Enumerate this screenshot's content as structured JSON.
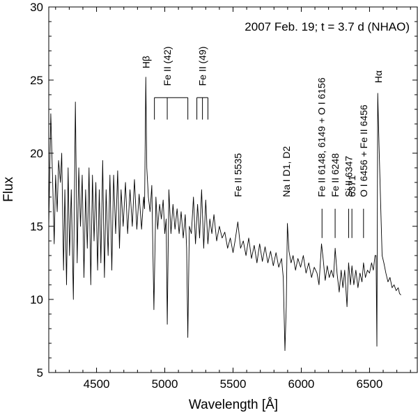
{
  "chart_data": {
    "type": "line",
    "title": "2007 Feb. 19; t = 3.7 d (NHAO)",
    "xlabel": "Wavelength [Å]",
    "ylabel": "Flux",
    "xlim": [
      4150,
      6850
    ],
    "ylim": [
      5,
      30
    ],
    "xticks": [
      4500,
      5000,
      5500,
      6000,
      6500
    ],
    "yticks": [
      5,
      10,
      15,
      20,
      25,
      30
    ],
    "grid": false,
    "legend": "none",
    "series": [
      {
        "color": "#000000",
        "points": [
          [
            4150,
            15.0
          ],
          [
            4165,
            22.7
          ],
          [
            4180,
            17.5
          ],
          [
            4190,
            13.8
          ],
          [
            4200,
            18.5
          ],
          [
            4212,
            16.0
          ],
          [
            4222,
            19.5
          ],
          [
            4235,
            18.0
          ],
          [
            4245,
            20.0
          ],
          [
            4258,
            12.0
          ],
          [
            4268,
            17.5
          ],
          [
            4280,
            11.0
          ],
          [
            4292,
            19.0
          ],
          [
            4302,
            13.0
          ],
          [
            4315,
            17.5
          ],
          [
            4330,
            10.0
          ],
          [
            4345,
            23.5
          ],
          [
            4358,
            12.5
          ],
          [
            4370,
            19.0
          ],
          [
            4382,
            15.0
          ],
          [
            4395,
            18.5
          ],
          [
            4408,
            11.5
          ],
          [
            4420,
            17.5
          ],
          [
            4432,
            13.5
          ],
          [
            4445,
            19.0
          ],
          [
            4458,
            11.0
          ],
          [
            4470,
            18.5
          ],
          [
            4482,
            14.0
          ],
          [
            4495,
            18.0
          ],
          [
            4508,
            12.0
          ],
          [
            4520,
            17.5
          ],
          [
            4532,
            12.5
          ],
          [
            4545,
            19.5
          ],
          [
            4558,
            11.5
          ],
          [
            4570,
            17.5
          ],
          [
            4585,
            13.0
          ],
          [
            4598,
            18.5
          ],
          [
            4612,
            12.0
          ],
          [
            4625,
            18.5
          ],
          [
            4640,
            14.5
          ],
          [
            4655,
            18.8
          ],
          [
            4668,
            13.5
          ],
          [
            4680,
            17.5
          ],
          [
            4695,
            15.0
          ],
          [
            4712,
            18.0
          ],
          [
            4728,
            14.5
          ],
          [
            4745,
            17.5
          ],
          [
            4762,
            15.0
          ],
          [
            4778,
            18.2
          ],
          [
            4795,
            14.8
          ],
          [
            4812,
            17.2
          ],
          [
            4830,
            14.8
          ],
          [
            4845,
            17.0
          ],
          [
            4852,
            16.2
          ],
          [
            4861,
            25.2
          ],
          [
            4868,
            19.0
          ],
          [
            4880,
            17.0
          ],
          [
            4892,
            16.0
          ],
          [
            4905,
            17.8
          ],
          [
            4920,
            9.3
          ],
          [
            4935,
            17.0
          ],
          [
            4948,
            14.8
          ],
          [
            4962,
            16.5
          ],
          [
            4975,
            15.5
          ],
          [
            4988,
            16.8
          ],
          [
            5000,
            14.5
          ],
          [
            5010,
            15.5
          ],
          [
            5018,
            8.3
          ],
          [
            5030,
            17.5
          ],
          [
            5045,
            14.5
          ],
          [
            5060,
            16.5
          ],
          [
            5075,
            14.8
          ],
          [
            5090,
            16.2
          ],
          [
            5105,
            14.5
          ],
          [
            5120,
            16.0
          ],
          [
            5135,
            14.2
          ],
          [
            5150,
            15.8
          ],
          [
            5160,
            13.5
          ],
          [
            5169,
            7.4
          ],
          [
            5180,
            15.0
          ],
          [
            5195,
            14.5
          ],
          [
            5210,
            17.0
          ],
          [
            5225,
            13.8
          ],
          [
            5240,
            16.5
          ],
          [
            5255,
            14.2
          ],
          [
            5270,
            17.5
          ],
          [
            5285,
            13.5
          ],
          [
            5300,
            16.8
          ],
          [
            5316,
            13.8
          ],
          [
            5330,
            15.5
          ],
          [
            5345,
            14.5
          ],
          [
            5360,
            15.8
          ],
          [
            5380,
            14.0
          ],
          [
            5400,
            15.0
          ],
          [
            5420,
            14.2
          ],
          [
            5440,
            14.6
          ],
          [
            5460,
            13.5
          ],
          [
            5480,
            14.2
          ],
          [
            5500,
            13.2
          ],
          [
            5515,
            14.0
          ],
          [
            5535,
            15.3
          ],
          [
            5555,
            13.5
          ],
          [
            5575,
            14.0
          ],
          [
            5595,
            13.0
          ],
          [
            5615,
            14.2
          ],
          [
            5635,
            12.8
          ],
          [
            5655,
            13.7
          ],
          [
            5675,
            12.5
          ],
          [
            5695,
            13.8
          ],
          [
            5715,
            12.6
          ],
          [
            5735,
            13.6
          ],
          [
            5755,
            12.5
          ],
          [
            5775,
            13.3
          ],
          [
            5795,
            12.3
          ],
          [
            5815,
            13.2
          ],
          [
            5835,
            12.2
          ],
          [
            5855,
            12.8
          ],
          [
            5868,
            11.5
          ],
          [
            5880,
            6.5
          ],
          [
            5890,
            9.5
          ],
          [
            5898,
            15.2
          ],
          [
            5910,
            13.3
          ],
          [
            5925,
            12.5
          ],
          [
            5940,
            13.0
          ],
          [
            5958,
            12.0
          ],
          [
            5975,
            12.8
          ],
          [
            5995,
            12.2
          ],
          [
            6015,
            13.0
          ],
          [
            6035,
            11.8
          ],
          [
            6055,
            12.5
          ],
          [
            6075,
            11.5
          ],
          [
            6095,
            12.2
          ],
          [
            6115,
            11.8
          ],
          [
            6130,
            11.0
          ],
          [
            6148,
            13.8
          ],
          [
            6160,
            12.8
          ],
          [
            6175,
            11.3
          ],
          [
            6190,
            12.3
          ],
          [
            6205,
            11.5
          ],
          [
            6220,
            12.0
          ],
          [
            6236,
            11.5
          ],
          [
            6248,
            13.5
          ],
          [
            6262,
            11.8
          ],
          [
            6278,
            10.5
          ],
          [
            6292,
            12.0
          ],
          [
            6305,
            10.8
          ],
          [
            6318,
            12.0
          ],
          [
            6335,
            9.5
          ],
          [
            6347,
            12.5
          ],
          [
            6360,
            11.0
          ],
          [
            6371,
            12.3
          ],
          [
            6385,
            11.0
          ],
          [
            6400,
            12.0
          ],
          [
            6415,
            10.8
          ],
          [
            6430,
            11.8
          ],
          [
            6445,
            11.2
          ],
          [
            6456,
            12.5
          ],
          [
            6470,
            11.5
          ],
          [
            6485,
            12.0
          ],
          [
            6500,
            11.8
          ],
          [
            6515,
            12.5
          ],
          [
            6528,
            12.0
          ],
          [
            6540,
            13.0
          ],
          [
            6548,
            13.0
          ],
          [
            6554,
            6.8
          ],
          [
            6560,
            24.1
          ],
          [
            6570,
            20.5
          ],
          [
            6580,
            17.0
          ],
          [
            6592,
            13.0
          ],
          [
            6605,
            12.5
          ],
          [
            6620,
            11.8
          ],
          [
            6635,
            11.2
          ],
          [
            6650,
            11.5
          ],
          [
            6665,
            10.8
          ],
          [
            6680,
            11.0
          ],
          [
            6695,
            10.6
          ],
          [
            6710,
            10.8
          ],
          [
            6720,
            10.4
          ],
          [
            6730,
            10.3
          ]
        ]
      }
    ],
    "markers": [
      {
        "label": "Hβ",
        "label_x": 4861,
        "label_y": 25.8
      },
      {
        "label": "Fe II (42)",
        "label_x": 5018,
        "label_y": 24.6,
        "comb_top": 23.8,
        "comb_bottom": 22.3,
        "comb_x": [
          4924,
          5018,
          5169
        ]
      },
      {
        "label": "Fe II (49)",
        "label_x": 5276,
        "label_y": 24.6,
        "comb_top": 23.8,
        "comb_bottom": 22.3,
        "comb_x": [
          5235,
          5276,
          5316
        ]
      },
      {
        "label": "Fe II 5535",
        "label_x": 5535,
        "label_y": 17.0
      },
      {
        "label": "Na I D1, D2",
        "label_x": 5890,
        "label_y": 17.0
      },
      {
        "label": "Fe II 6148, 6149 + O I 6156",
        "label_x": 6148,
        "label_y": 17.0,
        "tick_x": 6152,
        "tick_top": 16.2,
        "tick_bottom": 14.2
      },
      {
        "label": "Fe II 6248",
        "label_x": 6248,
        "label_y": 17.0,
        "tick_x": 6248,
        "tick_top": 16.2,
        "tick_bottom": 14.2
      },
      {
        "label": "Si II 6347",
        "label_x": 6347,
        "label_y": 17.0,
        "tick_x": 6347,
        "tick_top": 16.2,
        "tick_bottom": 14.2
      },
      {
        "label": "6371",
        "label_x": 6371,
        "label_y": 17.0,
        "tick_x": 6371,
        "tick_top": 16.2,
        "tick_bottom": 14.2
      },
      {
        "label": "O I 6456 + Fe II 6456",
        "label_x": 6456,
        "label_y": 17.0,
        "tick_x": 6456,
        "tick_top": 16.2,
        "tick_bottom": 14.2
      },
      {
        "label": "Hα",
        "label_x": 6563,
        "label_y": 24.8
      }
    ]
  }
}
